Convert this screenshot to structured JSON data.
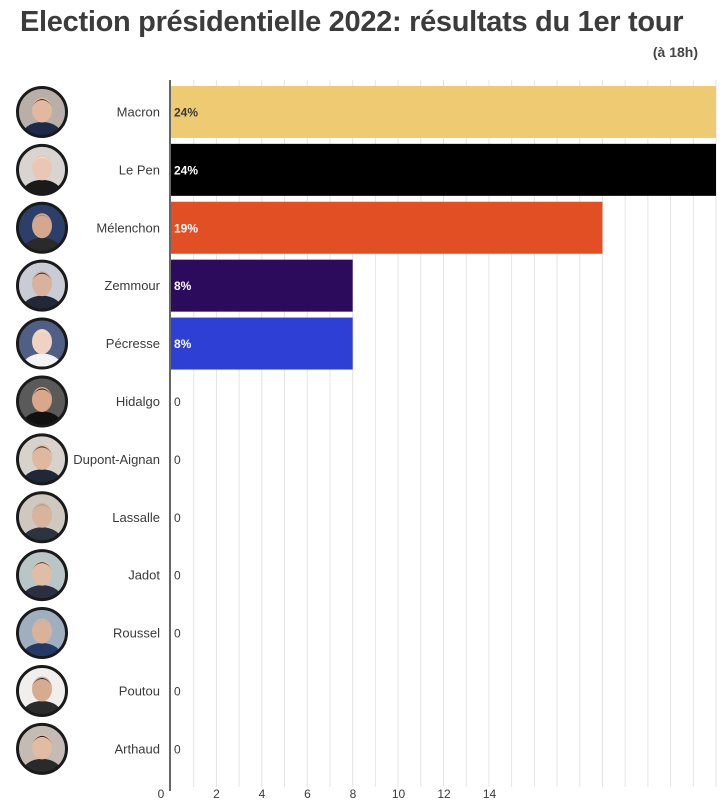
{
  "title": "Election présidentielle 2022: résultats du 1er tour",
  "subtitle": "(à 18h)",
  "chart_data": {
    "type": "bar",
    "orientation": "horizontal",
    "categories": [
      "Macron",
      "Le Pen",
      "Mélenchon",
      "Zemmour",
      "Pécresse",
      "Hidalgo",
      "Dupont-Aignan",
      "Lassalle",
      "Jadot",
      "Roussel",
      "Poutou",
      "Arthaud"
    ],
    "values": [
      24,
      24,
      19,
      8,
      8,
      0,
      0,
      0,
      0,
      0,
      0,
      0
    ],
    "value_labels": [
      "24%",
      "24%",
      "19%",
      "8%",
      "8%",
      "0",
      "0",
      "0",
      "0",
      "0",
      "0",
      "0"
    ],
    "colors": [
      "#eecb72",
      "#000000",
      "#e34f24",
      "#2c0a5c",
      "#2e3fd6",
      "#cccccc",
      "#cccccc",
      "#cccccc",
      "#cccccc",
      "#cccccc",
      "#cccccc",
      "#cccccc"
    ],
    "label_colors": [
      "#3a3a3a",
      "#ffffff",
      "#ffffff",
      "#ffffff",
      "#ffffff",
      "#3a3a3a",
      "#3a3a3a",
      "#3a3a3a",
      "#3a3a3a",
      "#3a3a3a",
      "#3a3a3a",
      "#3a3a3a"
    ],
    "x_ticks": [
      0,
      2,
      4,
      6,
      8,
      10,
      12,
      14
    ],
    "xlim": [
      0,
      24
    ],
    "grid": true,
    "avatar_icons": [
      "person-photo-icon"
    ]
  }
}
